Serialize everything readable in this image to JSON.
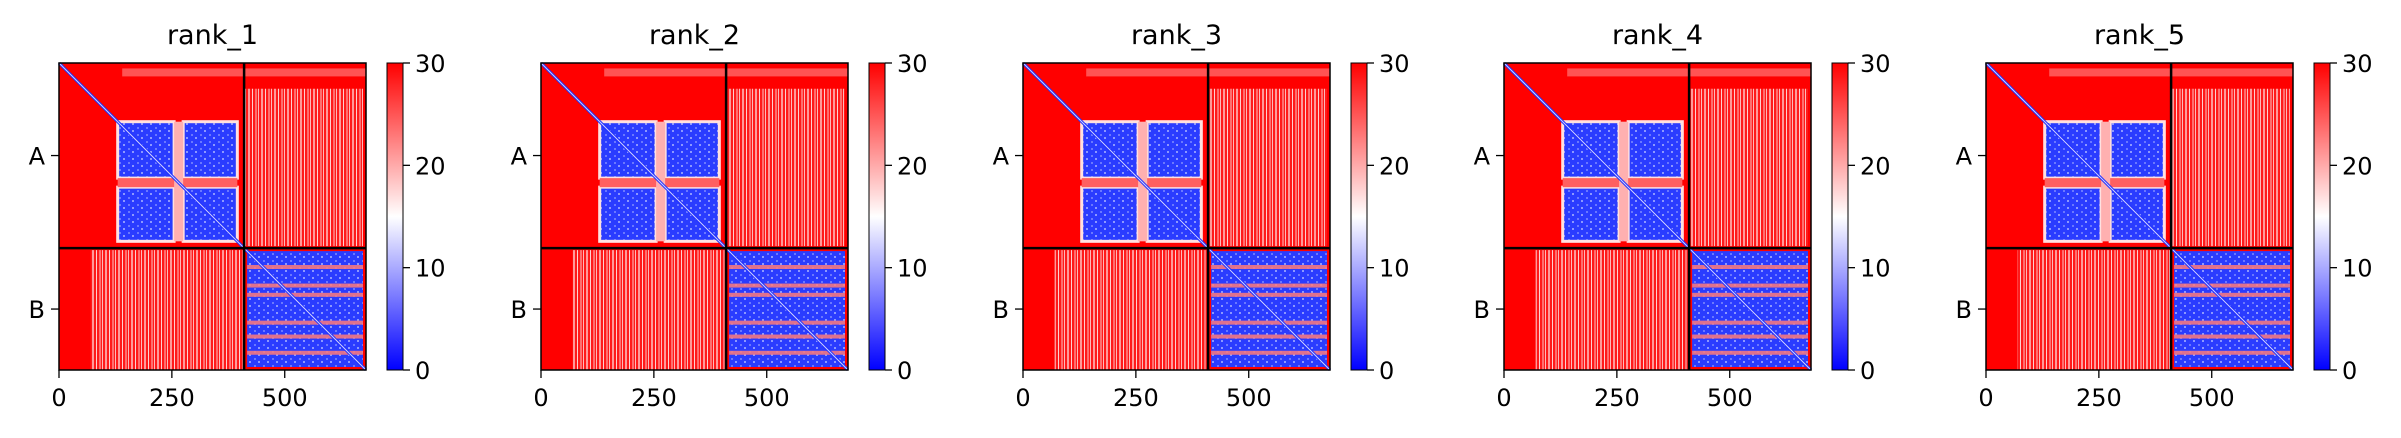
{
  "colors": {
    "low": "#0000ff",
    "mid": "#ffffff",
    "high": "#ff0000",
    "frame": "#000000"
  },
  "chart_data": [
    {
      "type": "heatmap",
      "title": "rank_1",
      "chains": [
        "A",
        "B"
      ],
      "x_ticks": [
        0,
        250,
        500
      ],
      "colorbar_ticks": [
        0,
        10,
        20,
        30
      ],
      "value_range": [
        0,
        30
      ],
      "extent": [
        0,
        680
      ],
      "chain_boundary": 410,
      "colormap": "bwr"
    },
    {
      "type": "heatmap",
      "title": "rank_2",
      "chains": [
        "A",
        "B"
      ],
      "x_ticks": [
        0,
        250,
        500
      ],
      "colorbar_ticks": [
        0,
        10,
        20,
        30
      ],
      "value_range": [
        0,
        30
      ],
      "extent": [
        0,
        680
      ],
      "chain_boundary": 410,
      "colormap": "bwr"
    },
    {
      "type": "heatmap",
      "title": "rank_3",
      "chains": [
        "A",
        "B"
      ],
      "x_ticks": [
        0,
        250,
        500
      ],
      "colorbar_ticks": [
        0,
        10,
        20,
        30
      ],
      "value_range": [
        0,
        30
      ],
      "extent": [
        0,
        680
      ],
      "chain_boundary": 410,
      "colormap": "bwr"
    },
    {
      "type": "heatmap",
      "title": "rank_4",
      "chains": [
        "A",
        "B"
      ],
      "x_ticks": [
        0,
        250,
        500
      ],
      "colorbar_ticks": [
        0,
        10,
        20,
        30
      ],
      "value_range": [
        0,
        30
      ],
      "extent": [
        0,
        680
      ],
      "chain_boundary": 410,
      "colormap": "bwr"
    },
    {
      "type": "heatmap",
      "title": "rank_5",
      "chains": [
        "A",
        "B"
      ],
      "x_ticks": [
        0,
        250,
        500
      ],
      "colorbar_ticks": [
        0,
        10,
        20,
        30
      ],
      "value_range": [
        0,
        30
      ],
      "extent": [
        0,
        680
      ],
      "chain_boundary": 410,
      "colormap": "bwr"
    }
  ]
}
